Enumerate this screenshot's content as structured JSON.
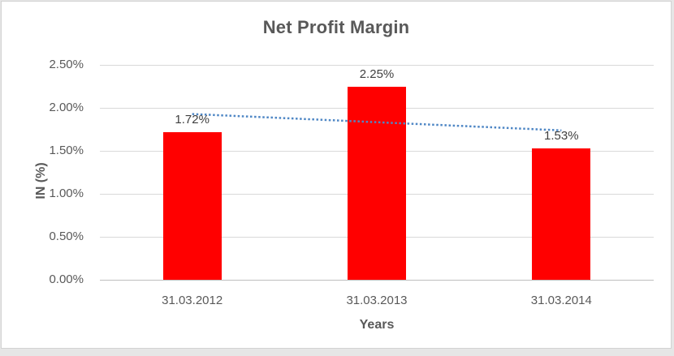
{
  "chart_data": {
    "type": "bar",
    "title": "Net Profit Margin",
    "categories": [
      "31.03.2012",
      "31.03.2013",
      "31.03.2014"
    ],
    "values": [
      1.72,
      2.25,
      1.53
    ],
    "data_labels": [
      "1.72%",
      "2.25%",
      "1.53%"
    ],
    "xlabel": "Years",
    "ylabel": "IN (%)",
    "ylim": [
      0,
      2.5
    ],
    "ytick_step": 0.5,
    "ytick_labels": [
      "0.00%",
      "0.50%",
      "1.00%",
      "1.50%",
      "2.00%",
      "2.50%"
    ],
    "grid": true,
    "legend": "none",
    "bar_color": "#ff0000",
    "trendline": {
      "type": "linear",
      "style": "dotted",
      "color": "#4f87c5",
      "values": [
        1.928,
        1.833,
        1.738
      ]
    },
    "colors": {
      "title_text": "#595959",
      "axis_text": "#595959",
      "data_label_text": "#3f3f3f",
      "gridline": "#d9d9d9",
      "axis_line": "#bfbfbf",
      "panel_border": "#d2d2d2",
      "panel_bg": "#ffffff",
      "outside_bg": "#e6e6e6"
    }
  }
}
